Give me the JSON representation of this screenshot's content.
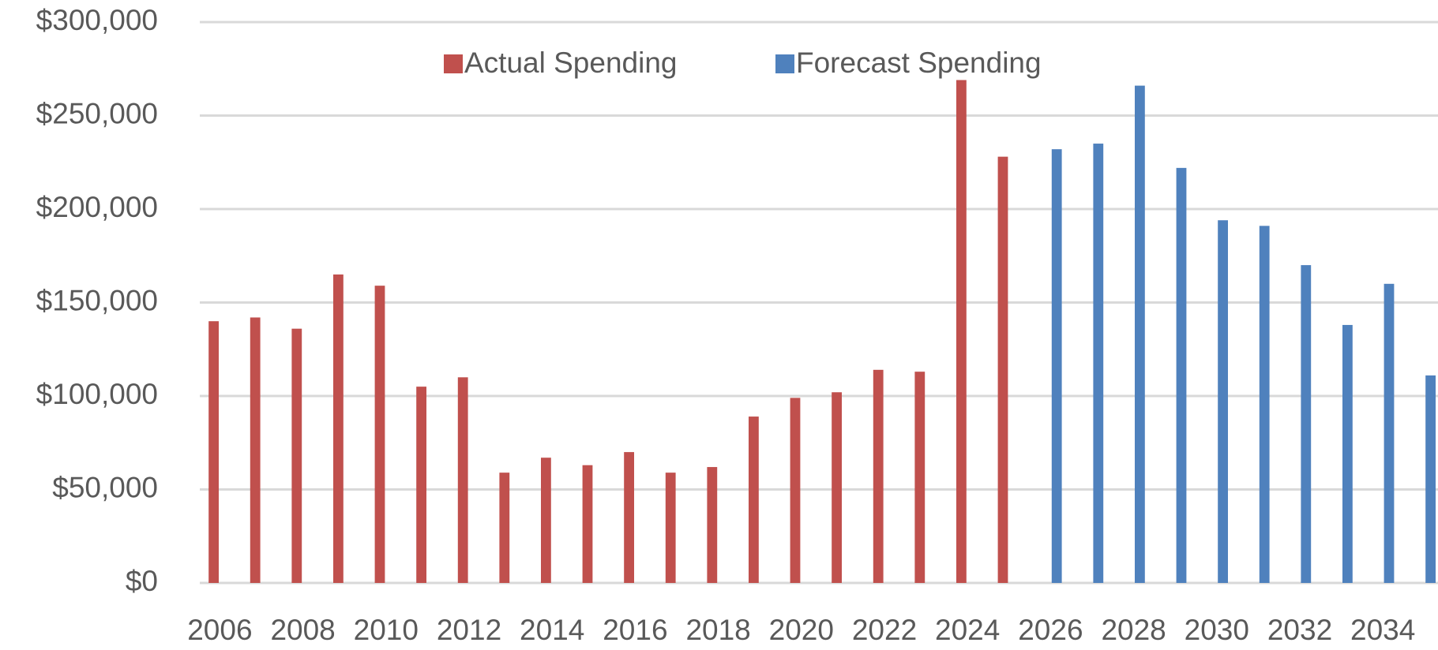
{
  "chart_data": {
    "type": "bar",
    "categories": [
      "2006",
      null,
      "2008",
      null,
      "2010",
      null,
      "2012",
      null,
      "2014",
      null,
      "2016",
      null,
      "2018",
      null,
      "2020",
      null,
      "2022",
      null,
      "2024",
      null,
      "2026",
      null,
      "2028",
      null,
      "2030",
      null,
      "2032",
      null,
      "2034",
      null
    ],
    "series": [
      {
        "name": "Actual Spending",
        "color": "#c0504d",
        "values": [
          140000,
          142000,
          136000,
          165000,
          159000,
          105000,
          110000,
          59000,
          67000,
          63000,
          70000,
          59000,
          62000,
          89000,
          99000,
          102000,
          114000,
          113000,
          269000,
          228000,
          null,
          null,
          null,
          null,
          null,
          null,
          null,
          null,
          null,
          null
        ]
      },
      {
        "name": "Forecast Spending",
        "color": "#4f81bd",
        "values": [
          null,
          null,
          null,
          null,
          null,
          null,
          null,
          null,
          null,
          null,
          null,
          null,
          null,
          null,
          null,
          null,
          null,
          null,
          null,
          null,
          232000,
          235000,
          266000,
          222000,
          194000,
          191000,
          170000,
          138000,
          160000,
          111000
        ]
      }
    ],
    "ylim": [
      0,
      300000
    ],
    "yticks": [
      {
        "value": 0,
        "label": "$0"
      },
      {
        "value": 50000,
        "label": "$50,000"
      },
      {
        "value": 100000,
        "label": "$100,000"
      },
      {
        "value": 150000,
        "label": "$150,000"
      },
      {
        "value": 200000,
        "label": "$200,000"
      },
      {
        "value": 250000,
        "label": "$250,000"
      },
      {
        "value": 300000,
        "label": "$300,000"
      }
    ],
    "grid": true,
    "legend": "top"
  }
}
